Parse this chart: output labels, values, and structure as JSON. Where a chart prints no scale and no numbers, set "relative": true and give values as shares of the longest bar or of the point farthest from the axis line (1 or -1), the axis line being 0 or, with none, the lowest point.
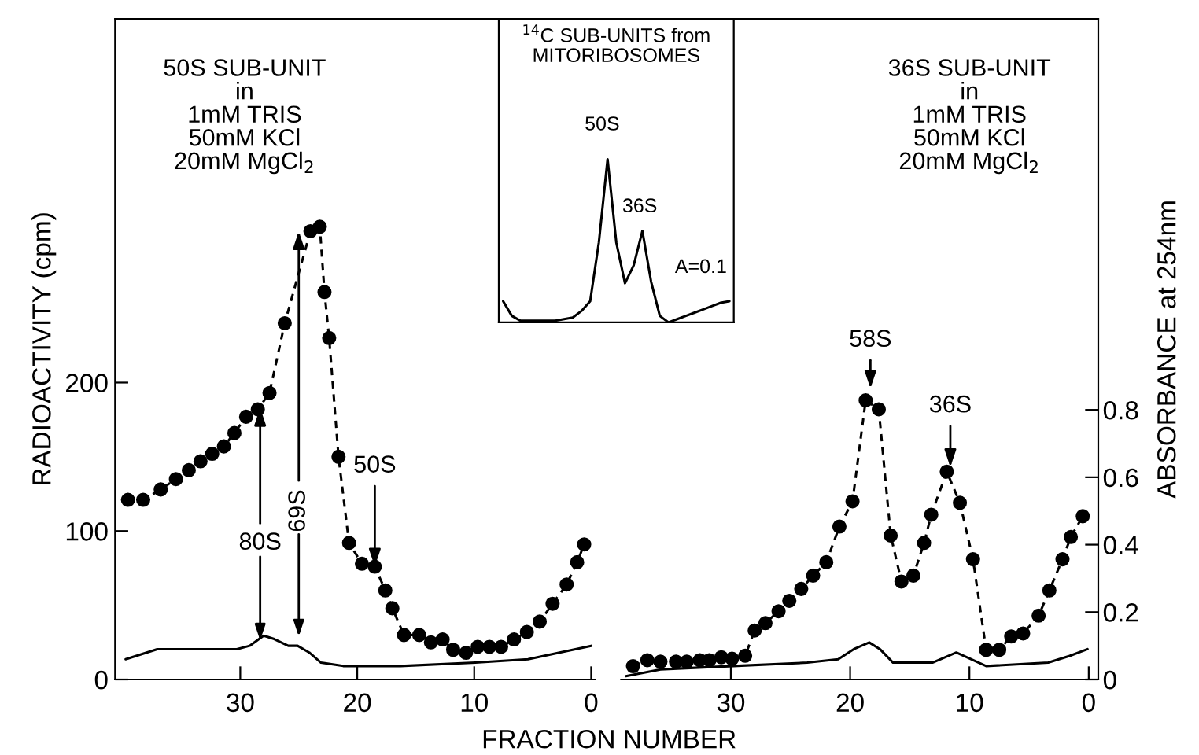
{
  "chart_data": [
    {
      "type": "line",
      "xlabel": "FRACTION NUMBER",
      "ylabel": "RADIOACTIVITY (cpm)",
      "xlim": [
        40.7,
        -0.3
      ],
      "xticks": [
        30,
        20,
        10,
        0
      ],
      "ylim": [
        0,
        445
      ],
      "yticks": [
        0,
        100,
        200
      ],
      "y2lim": [
        0,
        1.96
      ],
      "series": [
        {
          "color": "#000000",
          "line_style": "dashed",
          "marker": "circle",
          "x": [
            39.6,
            38.3,
            36.8,
            35.5,
            34.4,
            33.4,
            32.4,
            31.4,
            30.5,
            29.5,
            28.5,
            27.5,
            26.2,
            24.0,
            23.2,
            22.8,
            22.4,
            21.6,
            20.7,
            19.6,
            18.5,
            17.6,
            17.0,
            16.0,
            14.7,
            13.7,
            12.7,
            11.8,
            10.7,
            9.7,
            8.7,
            7.7,
            6.6,
            5.5,
            4.4,
            3.3,
            2.1,
            1.2,
            0.6
          ],
          "values": [
            121,
            121,
            128,
            135,
            141,
            147,
            152,
            157,
            166,
            177,
            182,
            193,
            240,
            302,
            305,
            261,
            230,
            150,
            92,
            78,
            76,
            60,
            48,
            30,
            30,
            25,
            27,
            20,
            18,
            22,
            22,
            22,
            27,
            32,
            39,
            51,
            64,
            79,
            91
          ]
        },
        {
          "color": "#000000",
          "axis": "y2",
          "line_style": "solid",
          "marker": "none",
          "x": [
            39.8,
            37.1,
            34.8,
            30.3,
            29.2,
            28.0,
            27.1,
            25.9,
            25.1,
            24.1,
            23.1,
            21.2,
            16.3,
            9.9,
            5.4,
            2.7,
            0
          ],
          "values": [
            0.06,
            0.09,
            0.09,
            0.09,
            0.1,
            0.13,
            0.12,
            0.1,
            0.1,
            0.08,
            0.05,
            0.04,
            0.04,
            0.05,
            0.06,
            0.08,
            0.1
          ]
        }
      ],
      "annotations": [
        "50S SUB-UNIT\nin\n1mM TRIS\n50mM KCl\n20mM MgCl$_{2}$",
        {
          "text": "80S",
          "x": 28.3,
          "y": 183
        },
        {
          "text": "69S",
          "x": 25.0,
          "y": 302
        },
        {
          "text": "50S",
          "x": 18.5,
          "y": 76
        }
      ]
    },
    {
      "type": "line",
      "y2label": "ABSORBANCE at 254nm",
      "xlim": [
        39.2,
        -0.8
      ],
      "xticks": [
        30,
        20,
        10,
        0
      ],
      "ylim": [
        0,
        445
      ],
      "y2lim": [
        0,
        1.96
      ],
      "y2ticks": [
        0,
        0.2,
        0.4,
        0.6,
        0.8
      ],
      "series": [
        {
          "color": "#000000",
          "line_style": "dashed",
          "marker": "circle",
          "x": [
            38.2,
            37.0,
            35.9,
            34.6,
            33.7,
            32.6,
            31.8,
            30.8,
            29.9,
            28.8,
            28.0,
            27.1,
            26.0,
            25.1,
            24.1,
            23.1,
            22.0,
            20.9,
            19.8,
            18.7,
            17.6,
            16.6,
            15.7,
            14.7,
            13.8,
            13.2,
            11.9,
            10.8,
            9.7,
            8.6,
            7.5,
            6.5,
            5.5,
            4.2,
            3.3,
            2.2,
            1.5,
            0.5
          ],
          "values": [
            9,
            13,
            12,
            12,
            12,
            13,
            13,
            15,
            14,
            16,
            33,
            38,
            46,
            53,
            61,
            70,
            79,
            103,
            120,
            188,
            182,
            97,
            66,
            70,
            92,
            111,
            140,
            119,
            81,
            20,
            20,
            29,
            31,
            43,
            60,
            81,
            96,
            110
          ]
        },
        {
          "color": "#000000",
          "axis": "y2",
          "line_style": "solid",
          "marker": "none",
          "x": [
            38.8,
            35.9,
            29.8,
            23.6,
            21.0,
            19.7,
            18.4,
            17.5,
            16.4,
            13.1,
            11.1,
            8.6,
            3.4,
            1.6,
            0.1
          ],
          "values": [
            0.01,
            0.03,
            0.04,
            0.05,
            0.06,
            0.09,
            0.11,
            0.09,
            0.05,
            0.05,
            0.08,
            0.04,
            0.05,
            0.07,
            0.09
          ]
        }
      ],
      "annotations": [
        "36S SUB-UNIT\nin\n1mM TRIS\n50mM KCl\n20mM MgCl$_{2}$",
        {
          "text": "58S",
          "x": 18.3,
          "y": 196
        },
        {
          "text": "36S",
          "x": 11.6,
          "y": 143
        }
      ]
    },
    {
      "type": "line",
      "relative": true,
      "title": "$^{14}$C SUB-UNITS from\nMITORIBOSOMES",
      "categories": [
        null,
        null,
        null,
        null,
        null,
        null,
        null,
        null,
        null,
        null,
        null,
        null,
        null,
        null,
        null,
        null,
        null,
        null,
        null,
        null,
        null,
        null,
        null,
        null,
        null,
        null,
        null
      ],
      "series": [
        {
          "color": "#000000",
          "line_style": "solid",
          "marker": "none",
          "values": [
            0.13,
            0.04,
            0.01,
            0.01,
            0.01,
            0.01,
            0.01,
            0.02,
            0.03,
            0.07,
            0.13,
            0.49,
            1.0,
            0.49,
            0.24,
            0.35,
            0.56,
            0.25,
            0.04,
            0,
            0.02,
            0.04,
            0.06,
            0.08,
            0.1,
            0.12,
            0.13
          ]
        }
      ],
      "annotations": [
        "50S",
        "36S",
        "A=0.1"
      ]
    }
  ]
}
